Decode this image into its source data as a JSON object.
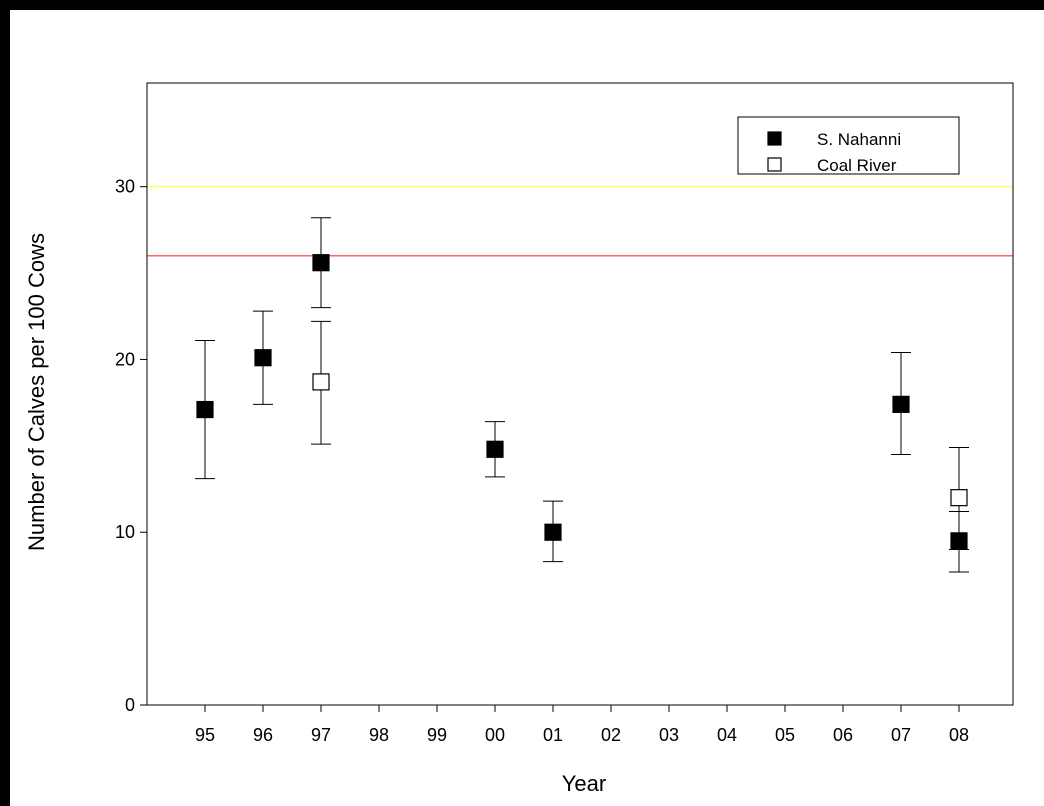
{
  "chart_data": {
    "type": "scatter",
    "xlabel": "Year",
    "ylabel": "Number of Calves per 100 Cows",
    "categories": [
      "95",
      "96",
      "97",
      "98",
      "99",
      "00",
      "01",
      "02",
      "03",
      "04",
      "05",
      "06",
      "07",
      "08"
    ],
    "ylim": [
      0,
      36
    ],
    "yticks": [
      0,
      10,
      20,
      30
    ],
    "grid": false,
    "legend_position": "top-right",
    "reference_lines": [
      {
        "y": 30,
        "color": "#ffff66"
      },
      {
        "y": 26,
        "color": "#ff6666"
      }
    ],
    "series": [
      {
        "name": "S. Nahanni",
        "marker": "filled-square",
        "points": [
          {
            "x": "95",
            "y": 17.1,
            "low": 13.1,
            "high": 21.1
          },
          {
            "x": "96",
            "y": 20.1,
            "low": 17.4,
            "high": 22.8
          },
          {
            "x": "97",
            "y": 25.6,
            "low": 23.0,
            "high": 28.2
          },
          {
            "x": "00",
            "y": 14.8,
            "low": 13.2,
            "high": 16.4
          },
          {
            "x": "01",
            "y": 10.0,
            "low": 8.3,
            "high": 11.8
          },
          {
            "x": "07",
            "y": 17.4,
            "low": 14.5,
            "high": 20.4
          },
          {
            "x": "08",
            "y": 9.5,
            "low": 7.7,
            "high": 11.2
          }
        ]
      },
      {
        "name": "Coal River",
        "marker": "open-square",
        "points": [
          {
            "x": "97",
            "y": 18.7,
            "low": 15.1,
            "high": 22.2
          },
          {
            "x": "08",
            "y": 12.0,
            "low": 9.0,
            "high": 14.9
          }
        ]
      }
    ]
  }
}
